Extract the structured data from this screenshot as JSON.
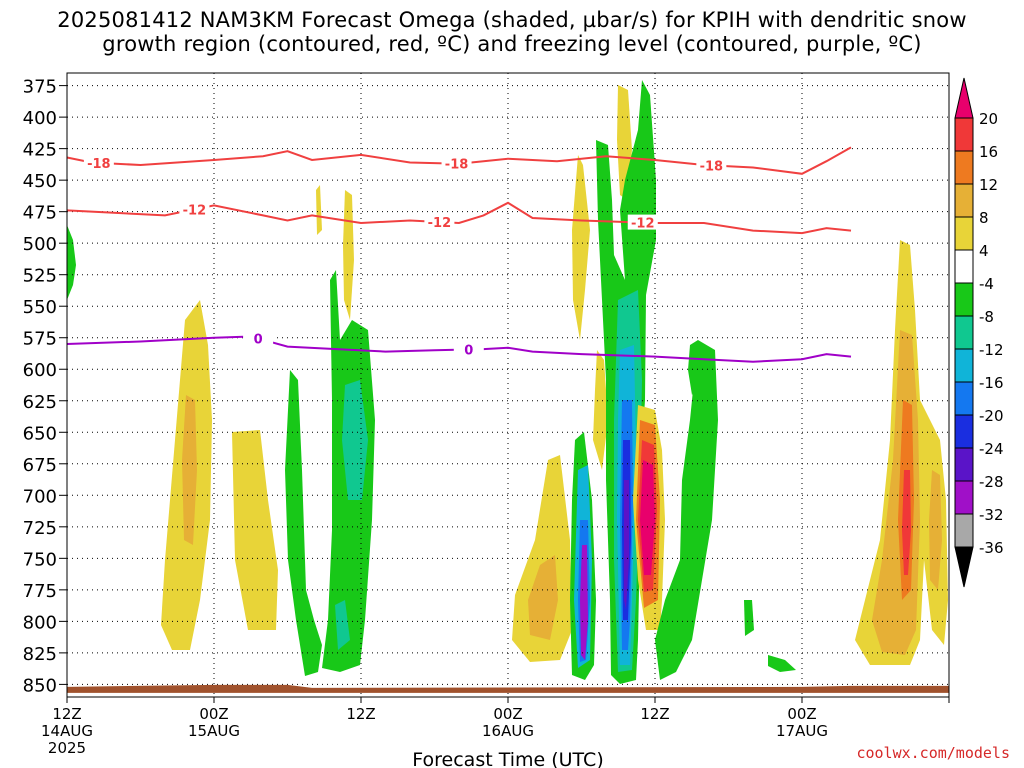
{
  "title_line1": "2025081412 NAM3KM Forecast Omega (shaded, µbar/s) for KPIH with dendritic snow",
  "title_line2": "growth region (contoured, red, ºC) and freezing level (contoured, purple, ºC)",
  "credit": "coolwx.com/models",
  "chart_data": {
    "type": "time-height contour",
    "xlabel": "Forecast Time (UTC)",
    "x_range_hours": [
      0,
      36
    ],
    "x_ticks": [
      {
        "h": 0,
        "line1": "12Z",
        "line2": "14AUG",
        "line3": "2025"
      },
      {
        "h": 6,
        "line1": "00Z",
        "line2": "15AUG",
        "line3": ""
      },
      {
        "h": 12,
        "line1": "12Z",
        "line2": "",
        "line3": ""
      },
      {
        "h": 18,
        "line1": "00Z",
        "line2": "16AUG",
        "line3": ""
      },
      {
        "h": 24,
        "line1": "12Z",
        "line2": "",
        "line3": ""
      },
      {
        "h": 30,
        "line1": "00Z",
        "line2": "17AUG",
        "line3": ""
      }
    ],
    "y_axis": "pressure (mb), inverted",
    "y_range": [
      365,
      860
    ],
    "y_ticks": [
      375,
      400,
      425,
      450,
      475,
      500,
      525,
      550,
      575,
      600,
      625,
      650,
      675,
      700,
      725,
      750,
      775,
      800,
      825,
      850
    ],
    "grid": true,
    "surface_color": "#a0522d",
    "colorbar": {
      "labels": [
        "20",
        "16",
        "12",
        "8",
        "4",
        "-4",
        "-8",
        "-12",
        "-16",
        "-20",
        "-24",
        "-28",
        "-32",
        "-36"
      ],
      "colors": [
        "#e8006c",
        "#f03838",
        "#ee7a20",
        "#e6b036",
        "#e8d438",
        "#ffffff",
        "#18c818",
        "#10c890",
        "#10b4d8",
        "#1478f0",
        "#1a2ee0",
        "#5a14c8",
        "#a010c8",
        "#a8a8a8",
        "#000000"
      ]
    },
    "contours": [
      {
        "name": "-18",
        "color": "#f04040",
        "points": [
          [
            0,
            432
          ],
          [
            1,
            436
          ],
          [
            3,
            438
          ],
          [
            6,
            434
          ],
          [
            8,
            431
          ],
          [
            9,
            427
          ],
          [
            10,
            434
          ],
          [
            12,
            430
          ],
          [
            14,
            436
          ],
          [
            16,
            437
          ],
          [
            18,
            433
          ],
          [
            20,
            435
          ],
          [
            22,
            431
          ],
          [
            24,
            434
          ],
          [
            26,
            438
          ],
          [
            28,
            440
          ],
          [
            30,
            445
          ],
          [
            31,
            435
          ],
          [
            32,
            424
          ]
        ],
        "labels": [
          [
            1.3,
            "-18"
          ],
          [
            15.9,
            "-18"
          ],
          [
            26.3,
            "-18"
          ]
        ]
      },
      {
        "name": "-12",
        "color": "#f04040",
        "points": [
          [
            0,
            474
          ],
          [
            2,
            476
          ],
          [
            4,
            478
          ],
          [
            6,
            470
          ],
          [
            8,
            478
          ],
          [
            9,
            482
          ],
          [
            10,
            478
          ],
          [
            12,
            484
          ],
          [
            14,
            482
          ],
          [
            16,
            484
          ],
          [
            17,
            478
          ],
          [
            18,
            468
          ],
          [
            19,
            480
          ],
          [
            21,
            482
          ],
          [
            24,
            484
          ],
          [
            26,
            484
          ],
          [
            28,
            490
          ],
          [
            30,
            492
          ],
          [
            31,
            488
          ],
          [
            32,
            490
          ]
        ],
        "labels": [
          [
            5.2,
            "-12"
          ],
          [
            15.2,
            "-12"
          ],
          [
            23.5,
            "-12"
          ]
        ]
      },
      {
        "name": "0",
        "color": "#a000c8",
        "points": [
          [
            0,
            580
          ],
          [
            3,
            578
          ],
          [
            6,
            575
          ],
          [
            7.5,
            574
          ],
          [
            9,
            582
          ],
          [
            11,
            584
          ],
          [
            13,
            586
          ],
          [
            15,
            585
          ],
          [
            17,
            584
          ],
          [
            18,
            583
          ],
          [
            19,
            586
          ],
          [
            21,
            588
          ],
          [
            24,
            590
          ],
          [
            26,
            592
          ],
          [
            28,
            594
          ],
          [
            30,
            592
          ],
          [
            31,
            588
          ],
          [
            32,
            590
          ]
        ],
        "labels": [
          [
            7.8,
            "0"
          ],
          [
            16.4,
            "0"
          ]
        ]
      }
    ]
  }
}
